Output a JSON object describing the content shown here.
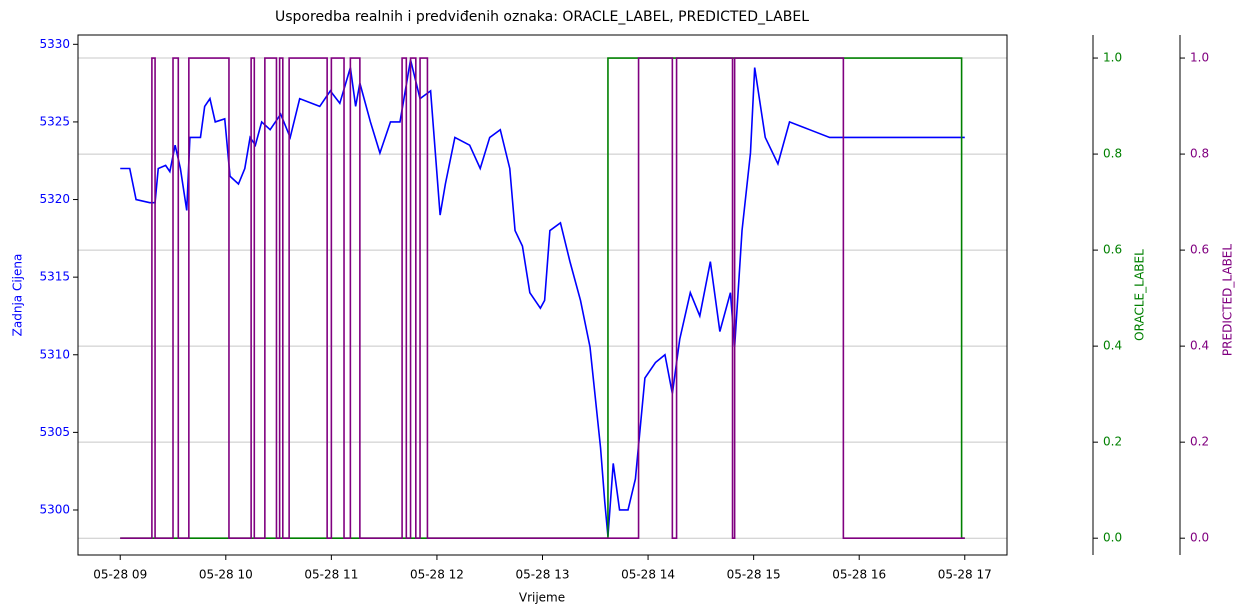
{
  "chart_data": {
    "type": "line",
    "title": "Usporedba realnih i predviđenih oznaka: ORACLE_LABEL, PREDICTED_LABEL",
    "x_label": "Vrijeme",
    "y_label": "Zadnja Cijena",
    "y2_label": "ORACLE_LABEL",
    "y3_label": "PREDICTED_LABEL",
    "grid": true,
    "xlim": [
      8.6,
      17.4
    ],
    "xticks": [
      {
        "value": 9,
        "label": "05-28 09"
      },
      {
        "value": 10,
        "label": "05-28 10"
      },
      {
        "value": 11,
        "label": "05-28 11"
      },
      {
        "value": 12,
        "label": "05-28 12"
      },
      {
        "value": 13,
        "label": "05-28 13"
      },
      {
        "value": 14,
        "label": "05-28 14"
      },
      {
        "value": 15,
        "label": "05-28 15"
      },
      {
        "value": 16,
        "label": "05-28 16"
      },
      {
        "value": 17,
        "label": "05-28 17"
      }
    ],
    "ylim": [
      5297.1,
      5330.6
    ],
    "yticks": [
      5300,
      5305,
      5310,
      5315,
      5320,
      5325,
      5330
    ],
    "y2lim": [
      -0.035,
      1.048
    ],
    "y2ticks": [
      {
        "value": 0,
        "label": "0.0"
      },
      {
        "value": 0.2,
        "label": "0.2"
      },
      {
        "value": 0.4,
        "label": "0.4"
      },
      {
        "value": 0.6,
        "label": "0.6"
      },
      {
        "value": 0.8,
        "label": "0.8"
      },
      {
        "value": 1,
        "label": "1.0"
      }
    ],
    "y3lim": [
      -0.035,
      1.048
    ],
    "y3ticks": [
      {
        "value": 0,
        "label": "0.0"
      },
      {
        "value": 0.2,
        "label": "0.2"
      },
      {
        "value": 0.4,
        "label": "0.4"
      },
      {
        "value": 0.6,
        "label": "0.6"
      },
      {
        "value": 0.8,
        "label": "0.8"
      },
      {
        "value": 1,
        "label": "1.0"
      }
    ],
    "series": [
      {
        "name": "Zadnja Cijena",
        "color": "#0000ff",
        "axis": "y",
        "step": false,
        "x": [
          9.0,
          9.09,
          9.15,
          9.28,
          9.33,
          9.36,
          9.43,
          9.47,
          9.52,
          9.57,
          9.63,
          9.66,
          9.76,
          9.8,
          9.85,
          9.9,
          9.99,
          10.04,
          10.12,
          10.18,
          10.23,
          10.28,
          10.34,
          10.42,
          10.52,
          10.61,
          10.7,
          10.89,
          10.99,
          11.08,
          11.18,
          11.23,
          11.27,
          11.37,
          11.46,
          11.56,
          11.65,
          11.75,
          11.84,
          11.94,
          12.03,
          12.08,
          12.17,
          12.31,
          12.41,
          12.5,
          12.6,
          12.69,
          12.74,
          12.81,
          12.88,
          12.98,
          13.02,
          13.07,
          13.17,
          13.26,
          13.36,
          13.45,
          13.55,
          13.59,
          13.62,
          13.67,
          13.73,
          13.81,
          13.88,
          13.97,
          14.07,
          14.16,
          14.23,
          14.3,
          14.4,
          14.49,
          14.59,
          14.68,
          14.78,
          14.82,
          14.89,
          14.97,
          15.01,
          15.11,
          15.23,
          15.34,
          15.53,
          15.72,
          15.91,
          17.0
        ],
        "values": [
          5322,
          5322,
          5320,
          5319.8,
          5319.8,
          5322,
          5322.2,
          5321.8,
          5323.5,
          5322,
          5319.3,
          5324,
          5324,
          5326,
          5326.5,
          5325,
          5325.2,
          5321.5,
          5321,
          5322,
          5324,
          5323.5,
          5325,
          5324.5,
          5325.5,
          5324,
          5326.5,
          5326,
          5327,
          5326.2,
          5328.5,
          5326,
          5327.5,
          5325,
          5323,
          5325,
          5325,
          5329,
          5326.5,
          5327,
          5319,
          5321,
          5324,
          5323.5,
          5322,
          5324,
          5324.5,
          5322,
          5318,
          5317,
          5314,
          5313,
          5313.5,
          5318,
          5318.5,
          5316,
          5313.5,
          5310.5,
          5304,
          5300.5,
          5298.3,
          5303,
          5300,
          5300,
          5302,
          5308.5,
          5309.5,
          5310,
          5307.5,
          5311,
          5314,
          5312.5,
          5316,
          5311.5,
          5314,
          5310.5,
          5318,
          5323,
          5328.5,
          5324,
          5322.3,
          5325,
          5324.5,
          5324,
          5324,
          5324
        ]
      },
      {
        "name": "ORACLE_LABEL",
        "color": "green",
        "axis": "y2",
        "step": true,
        "x": [
          9.0,
          13.62,
          16.97,
          17.0
        ],
        "values": [
          0,
          1,
          0,
          0
        ]
      },
      {
        "name": "PREDICTED_LABEL",
        "color": "purple",
        "axis": "y3",
        "step": true,
        "x": [
          9.0,
          9.3,
          9.33,
          9.5,
          9.55,
          9.65,
          10.03,
          10.24,
          10.27,
          10.37,
          10.48,
          10.51,
          10.54,
          10.6,
          10.96,
          11.0,
          11.12,
          11.18,
          11.27,
          11.67,
          11.71,
          11.75,
          11.8,
          11.84,
          11.91,
          13.91,
          14.23,
          14.27,
          14.8,
          14.82,
          15.85,
          17.0
        ],
        "values": [
          0,
          1,
          0,
          1,
          0,
          1,
          0,
          1,
          0,
          1,
          0,
          1,
          0,
          1,
          0,
          1,
          0,
          1,
          0,
          1,
          0,
          1,
          0,
          1,
          0,
          1,
          0,
          1,
          0,
          1,
          0,
          0
        ]
      }
    ]
  }
}
